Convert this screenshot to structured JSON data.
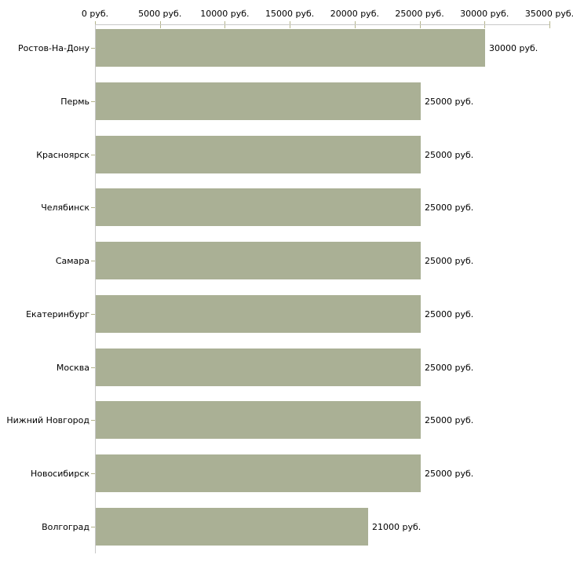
{
  "chart_data": {
    "type": "bar",
    "orientation": "horizontal",
    "title": "",
    "xlabel": "",
    "ylabel": "",
    "xlim": [
      0,
      35000
    ],
    "grid": false,
    "legend": false,
    "categories": [
      "Ростов-На-Дону",
      "Пермь",
      "Красноярск",
      "Челябинск",
      "Самара",
      "Екатеринбург",
      "Москва",
      "Нижний Новгород",
      "Новосибирск",
      "Волгоград"
    ],
    "values": [
      30000,
      25000,
      25000,
      25000,
      25000,
      25000,
      25000,
      25000,
      25000,
      21000
    ],
    "value_labels": [
      "30000 руб.",
      "25000 руб.",
      "25000 руб.",
      "25000 руб.",
      "25000 руб.",
      "25000 руб.",
      "25000 руб.",
      "25000 руб.",
      "25000 руб.",
      "21000 руб."
    ],
    "x_ticks": [
      0,
      5000,
      10000,
      15000,
      20000,
      25000,
      30000,
      35000
    ],
    "x_tick_labels": [
      "0 руб.",
      "5000 руб.",
      "10000 руб.",
      "15000 руб.",
      "20000 руб.",
      "25000 руб.",
      "30000 руб.",
      "35000 руб."
    ],
    "colors": {
      "bar": "#aab095",
      "axis_line": "#c8c8c8",
      "tick_mark": "#b5b58c",
      "text": "#000000"
    }
  }
}
